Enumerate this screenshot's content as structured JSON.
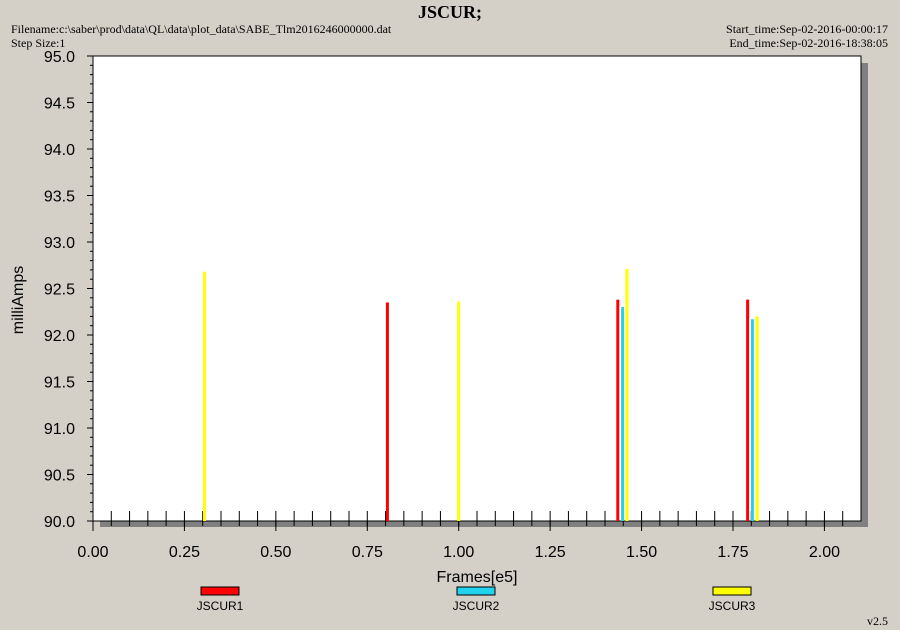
{
  "header": {
    "title": "JSCUR;",
    "filename": "Filename:c:\\saber\\prod\\data\\QL\\data\\plot_data\\SABE_Tlm2016246000000.dat",
    "step_size": "Step Size:1",
    "start_time": "Start_time:Sep-02-2016-00:00:17",
    "end_time": "End_time:Sep-02-2016-18:38:05"
  },
  "footer": {
    "version": "v2.5"
  },
  "colors": {
    "JSCUR1": "#ff0000",
    "JSCUR2": "#22d3ee",
    "JSCUR3": "#ffff00",
    "plot_bg": "#ffffff",
    "frame_bg": "#d4d0c8",
    "shadow": "#808080"
  },
  "chart_data": {
    "type": "bar",
    "title": "JSCUR;",
    "xlabel": "Frames[e5]",
    "ylabel": "milliAmps",
    "xlim": [
      0.0,
      2.1
    ],
    "ylim": [
      90.0,
      95.0
    ],
    "xticks": [
      "0.00",
      "0.25",
      "0.50",
      "0.75",
      "1.00",
      "1.25",
      "1.50",
      "1.75",
      "2.00"
    ],
    "yticks": [
      "90.0",
      "90.5",
      "91.0",
      "91.5",
      "92.0",
      "92.5",
      "93.0",
      "93.5",
      "94.0",
      "94.5",
      "95.0"
    ],
    "grid": false,
    "legend": "bottom",
    "series": [
      {
        "name": "JSCUR1",
        "color": "#ff0000",
        "points": [
          {
            "x": 0.805,
            "y": 92.35
          },
          {
            "x": 1.435,
            "y": 92.38
          },
          {
            "x": 1.79,
            "y": 92.38
          }
        ]
      },
      {
        "name": "JSCUR2",
        "color": "#22d3ee",
        "points": [
          {
            "x": 1.448,
            "y": 92.3
          },
          {
            "x": 1.803,
            "y": 92.17
          }
        ]
      },
      {
        "name": "JSCUR3",
        "color": "#ffff00",
        "points": [
          {
            "x": 0.305,
            "y": 92.68
          },
          {
            "x": 1.0,
            "y": 92.36
          },
          {
            "x": 1.46,
            "y": 92.71
          },
          {
            "x": 1.816,
            "y": 92.2
          }
        ]
      }
    ]
  }
}
